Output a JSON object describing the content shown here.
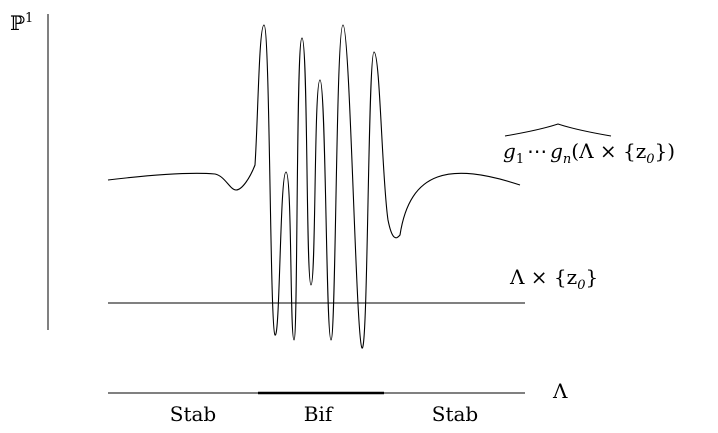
{
  "diagram": {
    "vertical_axis_label": "ℙ",
    "vertical_axis_label_sup": "1",
    "curve_label": {
      "g1": "g",
      "g1_sub": "1",
      "dots": "⋯",
      "gn": "g",
      "gn_sub": "n",
      "rest": "(Λ × {z",
      "rest_sub": "0",
      "rest_end": "})"
    },
    "line_label": {
      "text": "Λ × {z",
      "sub": "0",
      "end": "}"
    },
    "parameter_axis_label": "Λ",
    "regions": [
      {
        "label": "Stab"
      },
      {
        "label": "Bif"
      },
      {
        "label": "Stab"
      }
    ]
  }
}
